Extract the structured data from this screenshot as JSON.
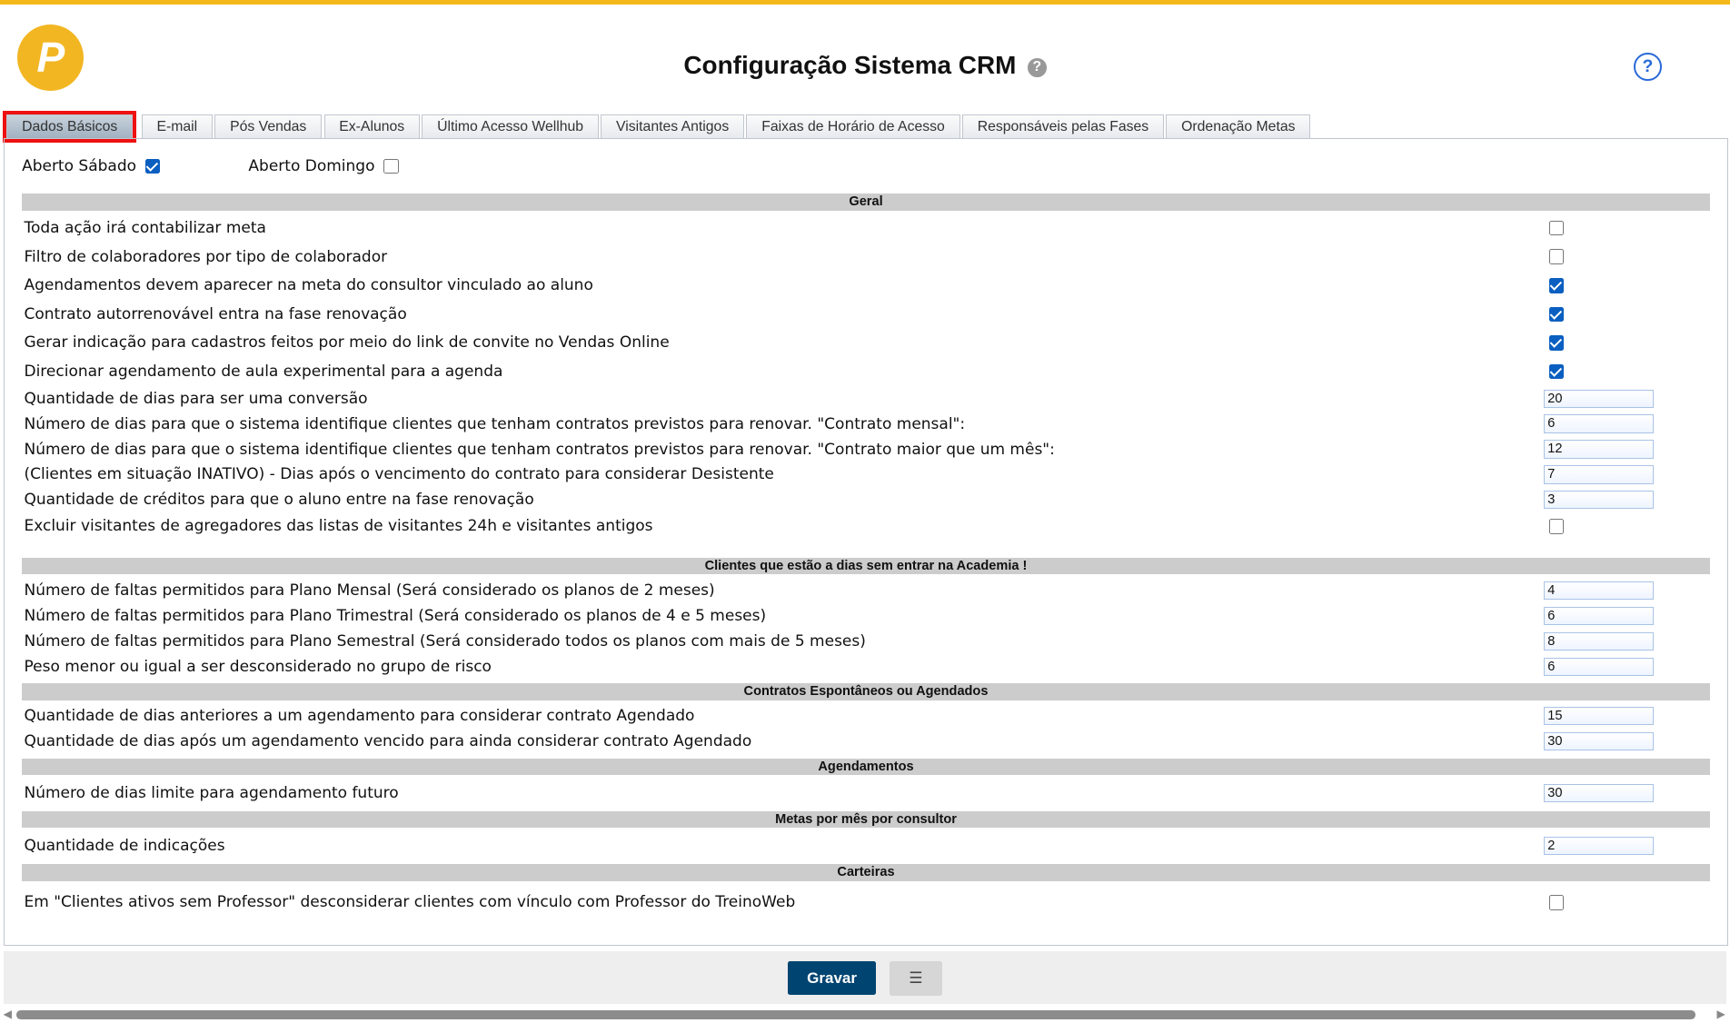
{
  "header": {
    "title": "Configuração Sistema CRM",
    "logo_text": "P",
    "help_icon": "question-circle-icon"
  },
  "colors": {
    "accent": "#f5b81a",
    "primary_button": "#004471",
    "checkbox": "#0a5fc0",
    "section_bg": "#cccccc",
    "highlight": "#ee1111"
  },
  "tabs": [
    {
      "label": "Dados Básicos",
      "active": true
    },
    {
      "label": "E-mail"
    },
    {
      "label": "Pós Vendas"
    },
    {
      "label": "Ex-Alunos"
    },
    {
      "label": "Último Acesso Wellhub"
    },
    {
      "label": "Visitantes Antigos"
    },
    {
      "label": "Faixas de Horário de Acesso"
    },
    {
      "label": "Responsáveis pelas Fases"
    },
    {
      "label": "Ordenação Metas"
    }
  ],
  "top_options": [
    {
      "label": "Aberto Sábado",
      "checked": true
    },
    {
      "label": "Aberto Domingo",
      "checked": false
    }
  ],
  "sections": [
    {
      "title": "Geral",
      "rows": [
        {
          "label": "Toda ação irá contabilizar meta",
          "type": "checkbox",
          "checked": false
        },
        {
          "label": "Filtro de colaboradores por tipo de colaborador",
          "type": "checkbox",
          "checked": false
        },
        {
          "label": "Agendamentos devem aparecer na meta do consultor vinculado ao aluno",
          "type": "checkbox",
          "checked": true
        },
        {
          "label": "Contrato autorrenovável entra na fase renovação",
          "type": "checkbox",
          "checked": true
        },
        {
          "label": "Gerar indicação para cadastros feitos por meio do link de convite no Vendas Online",
          "type": "checkbox",
          "checked": true
        },
        {
          "label": "Direcionar agendamento de aula experimental para a agenda",
          "type": "checkbox",
          "checked": true
        },
        {
          "label": "Quantidade de dias para ser uma conversão",
          "type": "input",
          "value": "20"
        },
        {
          "label": "Número de dias para que o sistema identifique clientes que tenham contratos previstos para renovar. \"Contrato mensal\":",
          "type": "input",
          "value": "6"
        },
        {
          "label": "Número de dias para que o sistema identifique clientes que tenham contratos previstos para renovar. \"Contrato maior que um mês\":",
          "type": "input",
          "value": "12"
        },
        {
          "label": "(Clientes em situação INATIVO) - Dias após o vencimento do contrato para considerar Desistente",
          "type": "input",
          "value": "7"
        },
        {
          "label": "Quantidade de créditos para que o aluno entre na fase renovação",
          "type": "input",
          "value": "3"
        },
        {
          "label": "Excluir visitantes de agregadores das listas de visitantes 24h e visitantes antigos",
          "type": "checkbox",
          "checked": false
        }
      ]
    },
    {
      "title": "Clientes que estão a dias sem entrar na Academia !",
      "rows": [
        {
          "label": "Número de faltas permitidos para Plano Mensal (Será considerado os planos de 2 meses)",
          "type": "input",
          "value": "4"
        },
        {
          "label": "Número de faltas permitidos para Plano Trimestral (Será considerado os planos de 4 e 5 meses)",
          "type": "input",
          "value": "6"
        },
        {
          "label": "Número de faltas permitidos para Plano Semestral (Será considerado todos os planos com mais de 5 meses)",
          "type": "input",
          "value": "8"
        },
        {
          "label": "Peso menor ou igual a ser desconsiderado no grupo de risco",
          "type": "input",
          "value": "6"
        }
      ]
    },
    {
      "title": "Contratos Espontâneos ou Agendados",
      "rows": [
        {
          "label": "Quantidade de dias anteriores a um agendamento para considerar contrato Agendado",
          "type": "input",
          "value": "15"
        },
        {
          "label": "Quantidade de dias após um agendamento vencido para ainda considerar contrato Agendado",
          "type": "input",
          "value": "30"
        }
      ]
    },
    {
      "title": "Agendamentos",
      "rows": [
        {
          "label": "Número de dias limite para agendamento futuro",
          "type": "input",
          "value": "30"
        }
      ]
    },
    {
      "title": "Metas por mês por consultor",
      "rows": [
        {
          "label": "Quantidade de indicações",
          "type": "input",
          "value": "2"
        }
      ]
    },
    {
      "title": "Carteiras",
      "rows": [
        {
          "label": "Em \"Clientes ativos sem Professor\" desconsiderar clientes com vínculo com Professor do TreinoWeb",
          "type": "checkbox",
          "checked": false
        }
      ]
    }
  ],
  "footer": {
    "save_label": "Gravar",
    "list_icon": "list-icon"
  }
}
